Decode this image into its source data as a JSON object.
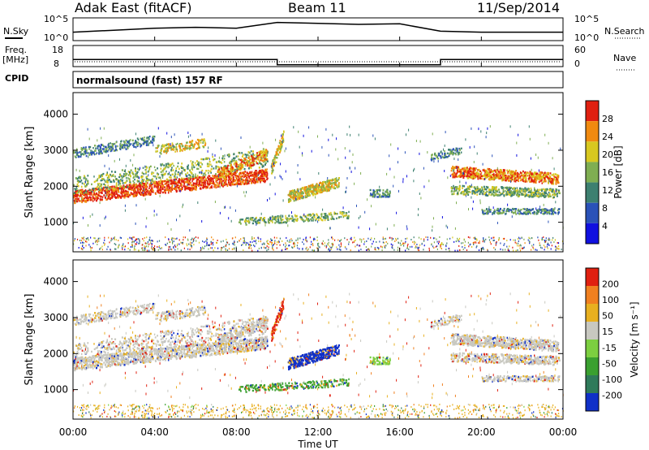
{
  "header": {
    "station": "Adak East (fitACF)",
    "beam": "Beam 11",
    "date": "11/Sep/2014"
  },
  "cpid_text": "normalsound (fast) 157 RF",
  "chart_data": [
    {
      "type": "line",
      "panel": "noise",
      "left_label": "N.Sky",
      "right_label": "N.Search",
      "left_ticks": [
        "10^5",
        "10^0"
      ],
      "right_ticks": [
        "10^5",
        "10^0"
      ],
      "x": [
        0,
        2,
        4,
        6,
        8,
        10,
        12,
        14,
        16,
        18,
        20,
        22,
        24
      ],
      "values": [
        0.35,
        0.45,
        0.55,
        0.6,
        0.55,
        0.85,
        0.8,
        0.75,
        0.78,
        0.4,
        0.35,
        0.35,
        0.35
      ]
    },
    {
      "type": "line",
      "panel": "frequency",
      "left_label": "Freq.",
      "left_unit": "[MHz]",
      "left_ticks": [
        "18",
        "8"
      ],
      "right_label": "Nave",
      "right_ticks": [
        "60",
        "0"
      ],
      "sub_label": "CPID",
      "segments": [
        {
          "from": 0,
          "to": 10,
          "freq": 12
        },
        {
          "from": 10,
          "to": 18,
          "freq": 9
        },
        {
          "from": 18,
          "to": 24,
          "freq": 12
        }
      ]
    },
    {
      "type": "heatmap",
      "panel": "power",
      "ylabel": "Slant Range [km]",
      "yticks": [
        "4000",
        "3000",
        "2000",
        "1000"
      ],
      "ytick_values": [
        4000,
        3000,
        2000,
        1000
      ],
      "ylim": [
        180,
        4600
      ],
      "colorbar_label": "Power [dB]",
      "colorbar_ticks": [
        "28",
        "24",
        "20",
        "16",
        "12",
        "8",
        "4"
      ],
      "colors": [
        "#1010e0",
        "#2a52b8",
        "#3d8070",
        "#7fae52",
        "#d8c820",
        "#f08a10",
        "#e02010"
      ]
    },
    {
      "type": "heatmap",
      "panel": "velocity",
      "ylabel": "Slant Range [km]",
      "yticks": [
        "4000",
        "3000",
        "2000",
        "1000"
      ],
      "ytick_values": [
        4000,
        3000,
        2000,
        1000
      ],
      "ylim": [
        180,
        4600
      ],
      "colorbar_label": "Velocity [m s⁻¹]",
      "colorbar_ticks": [
        "200",
        "100",
        "50",
        "15",
        "-15",
        "-50",
        "-100",
        "-200"
      ],
      "colors": [
        "#1030c8",
        "#2f7a5a",
        "#3aa030",
        "#7ccf40",
        "#c8c8c0",
        "#e8b020",
        "#f08020",
        "#e02010"
      ]
    }
  ],
  "xaxis": {
    "label": "Time UT",
    "ticks": [
      "00:00",
      "04:00",
      "08:00",
      "12:00",
      "16:00",
      "20:00",
      "00:00"
    ],
    "range_hours": [
      0,
      24
    ]
  }
}
